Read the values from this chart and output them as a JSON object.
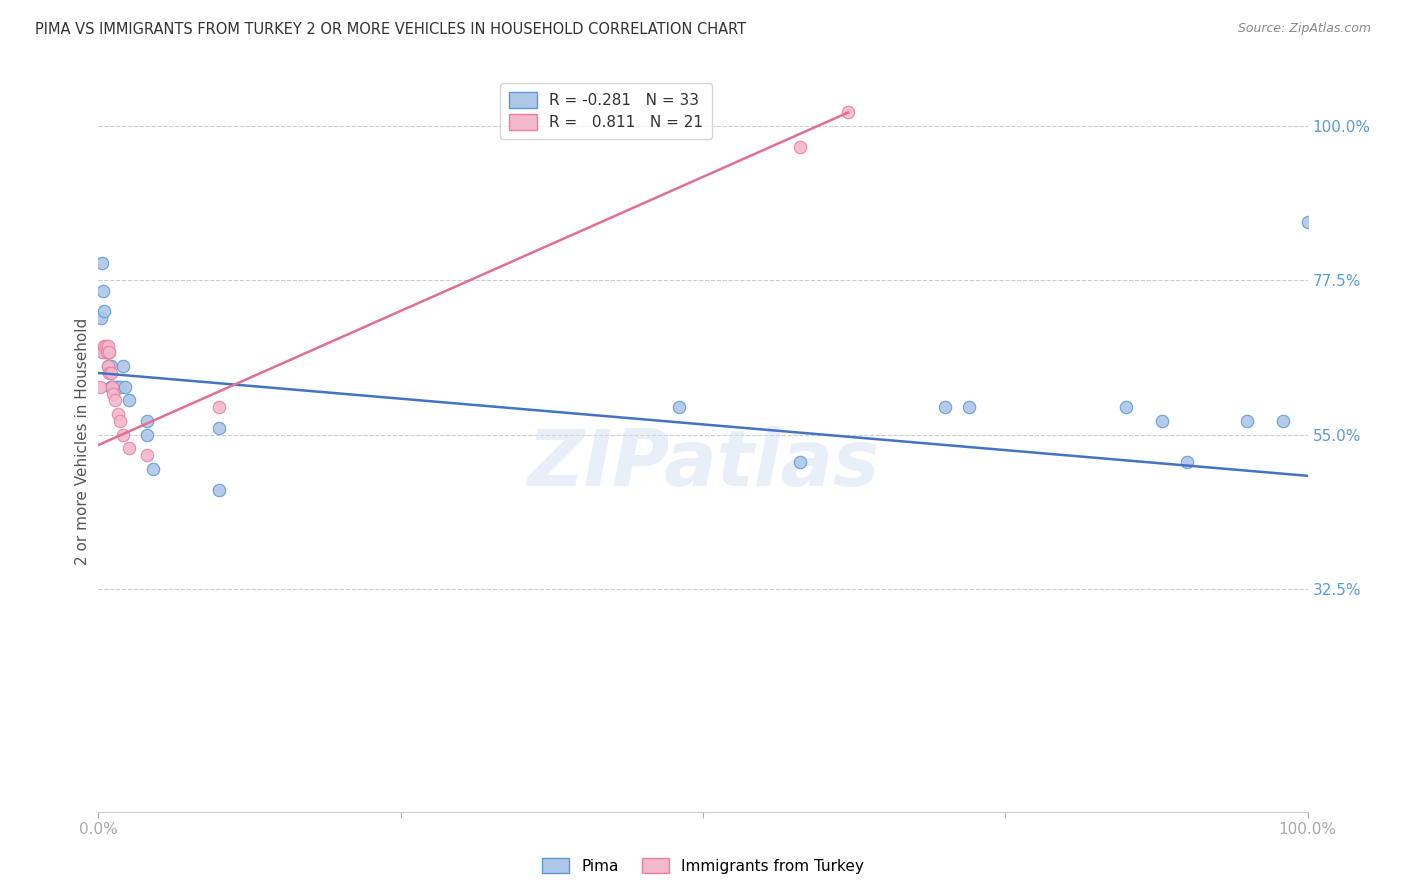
{
  "title": "PIMA VS IMMIGRANTS FROM TURKEY 2 OR MORE VEHICLES IN HOUSEHOLD CORRELATION CHART",
  "source": "Source: ZipAtlas.com",
  "ylabel": "2 or more Vehicles in Household",
  "watermark": "ZIPatlas",
  "xlim": [
    0.0,
    1.0
  ],
  "ylim": [
    0.0,
    1.08
  ],
  "ytick_positions": [
    0.325,
    0.55,
    0.775,
    1.0
  ],
  "ytick_labels": [
    "32.5%",
    "55.0%",
    "77.5%",
    "100.0%"
  ],
  "pima_color": "#aec6e8",
  "pima_edge_color": "#5b9bd5",
  "turkey_color": "#f4b8cc",
  "turkey_edge_color": "#e87fa0",
  "pima_line_color": "#4472c4",
  "turkey_line_color": "#e07090",
  "legend_label_pima": "Pima",
  "legend_label_turkey": "Immigrants from Turkey",
  "background_color": "#ffffff",
  "grid_color": "#cccccc",
  "pima_x": [
    0.002,
    0.003,
    0.004,
    0.005,
    0.005,
    0.006,
    0.007,
    0.008,
    0.008,
    0.009,
    0.009,
    0.01,
    0.01,
    0.01,
    0.012,
    0.013,
    0.015,
    0.015,
    0.018,
    0.02,
    0.022,
    0.025,
    0.04,
    0.04,
    0.045,
    0.1,
    0.1,
    0.48,
    0.58,
    0.7,
    0.72,
    0.85,
    0.88,
    0.9,
    0.95,
    0.98,
    1.0
  ],
  "pima_y": [
    0.72,
    0.8,
    0.76,
    0.67,
    0.73,
    0.67,
    0.67,
    0.65,
    0.67,
    0.65,
    0.67,
    0.62,
    0.62,
    0.65,
    0.62,
    0.62,
    0.62,
    0.62,
    0.62,
    0.65,
    0.62,
    0.6,
    0.55,
    0.57,
    0.5,
    0.47,
    0.56,
    0.59,
    0.51,
    0.59,
    0.59,
    0.59,
    0.57,
    0.51,
    0.57,
    0.57,
    0.86
  ],
  "turkey_x": [
    0.001,
    0.003,
    0.005,
    0.006,
    0.007,
    0.008,
    0.008,
    0.009,
    0.009,
    0.01,
    0.011,
    0.012,
    0.014,
    0.016,
    0.018,
    0.02,
    0.025,
    0.04,
    0.1,
    0.58,
    0.62
  ],
  "turkey_y": [
    0.62,
    0.67,
    0.68,
    0.68,
    0.67,
    0.65,
    0.68,
    0.64,
    0.67,
    0.64,
    0.62,
    0.61,
    0.6,
    0.58,
    0.57,
    0.55,
    0.53,
    0.52,
    0.59,
    0.97,
    1.02
  ],
  "pima_line_x": [
    0.0,
    1.0
  ],
  "pima_line_y": [
    0.64,
    0.49
  ],
  "turkey_line_x": [
    0.0,
    0.62
  ],
  "turkey_line_y": [
    0.535,
    1.02
  ],
  "marker_size": 80
}
